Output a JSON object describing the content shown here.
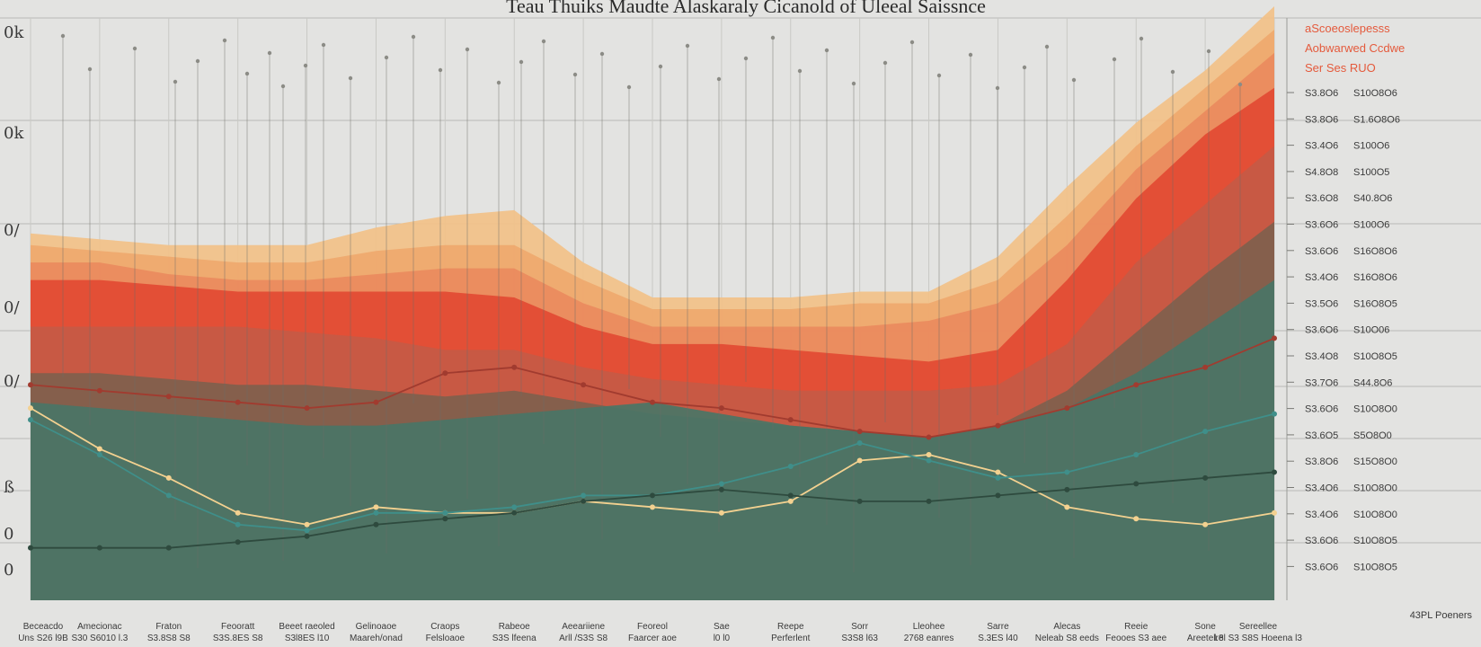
{
  "chart_data": {
    "type": "area",
    "title": "Teau Thuiks  Maudte Alaskaraly Cicanold  of  Uleeal Saissnce",
    "legend": {
      "placement": "top-right",
      "entries": [
        {
          "label": "aScoeoslepesss",
          "color": "#e24a33"
        },
        {
          "label": "Aobwarwed  Ccdwe",
          "color": "#e8694a"
        },
        {
          "label": "Ser Ses RUO",
          "color": "#ef8b5a"
        }
      ]
    },
    "left_ticks": [
      "0k",
      "0k",
      "0/",
      "0/",
      "0/",
      "ß",
      "0",
      "0"
    ],
    "right_ticks": [
      [
        "S3.8O6",
        "S10O8O6"
      ],
      [
        "S3.8O6",
        "S1.6O8O6"
      ],
      [
        "S3.4O6",
        "S100O6"
      ],
      [
        "S4.8O8",
        "S100O5"
      ],
      [
        "S3.6O8",
        "S40.8O6"
      ],
      [
        "S3.6O6",
        "S100O6"
      ],
      [
        "S3.6O6",
        "S16O8O6"
      ],
      [
        "S3.4O6",
        "S16O8O6"
      ],
      [
        "S3.5O6",
        "S16O8O5"
      ],
      [
        "S3.6O6",
        "S10O06"
      ],
      [
        "S3.4O8",
        "S10O8O5"
      ],
      [
        "S3.7O6",
        "S44.8O6"
      ],
      [
        "S3.6O6",
        "S10O8O0"
      ],
      [
        "S3.6O5",
        "S5O8O0"
      ],
      [
        "S3.8O6",
        "S15O8O0"
      ],
      [
        "S3.4O6",
        "S10O8O0"
      ],
      [
        "S3.4O6",
        "S10O8O0"
      ],
      [
        "S3.6O6",
        "S10O8O5"
      ],
      [
        "S3.6O6",
        "S10O8O5"
      ]
    ],
    "corner_label": "43PL Poeners",
    "categories": [
      {
        "line1": "Beceacdo",
        "line2": "Uns S26 l9B"
      },
      {
        "line1": "Amecionac",
        "line2": "S30 S6010 l.3"
      },
      {
        "line1": "Fraton",
        "line2": "S3.8S8 S8"
      },
      {
        "line1": "Feooratt",
        "line2": "S3S.8ES S8"
      },
      {
        "line1": "Beeet raeoled",
        "line2": "S3l8ES l10"
      },
      {
        "line1": "Gelinoaoe",
        "line2": "Maareh/onad"
      },
      {
        "line1": "Craops",
        "line2": "Felsloaoe"
      },
      {
        "line1": "Rabeoe",
        "line2": "S3S lfeena"
      },
      {
        "line1": "Aeeariiene",
        "line2": "Arll /S3S S8"
      },
      {
        "line1": "Feoreol",
        "line2": "Faarcer aoe"
      },
      {
        "line1": "Sae",
        "line2": "l0 l0"
      },
      {
        "line1": "Reepe",
        "line2": "Perferlent"
      },
      {
        "line1": "Sorr",
        "line2": "S3S8 l63"
      },
      {
        "line1": "Lleohee",
        "line2": "2768 eanres"
      },
      {
        "line1": "Sarre",
        "line2": "S.3ES l40"
      },
      {
        "line1": "Alecas",
        "line2": "Neleab S8 eeds"
      },
      {
        "line1": "Reeie",
        "line2": "Feooes S3 aee"
      },
      {
        "line1": "Sone",
        "line2": "Areetelre"
      },
      {
        "line1": "Sereellee",
        "line2": "l.8l S3 S8S Hoeena l3"
      }
    ],
    "x": [
      0,
      1,
      2,
      3,
      4,
      5,
      6,
      7,
      8,
      9,
      10,
      11,
      12,
      13,
      14,
      15,
      16,
      17,
      18
    ],
    "ylim": [
      0,
      100
    ],
    "grid": true,
    "areas": [
      {
        "color": "#f2c188",
        "values": [
          63,
          62,
          61,
          61,
          61,
          64,
          66,
          67,
          58,
          52,
          52,
          52,
          53,
          53,
          59,
          71,
          82,
          91,
          102
        ]
      },
      {
        "color": "#efa86e",
        "values": [
          61,
          60,
          59,
          58,
          58,
          60,
          61,
          61,
          55,
          50,
          50,
          50,
          51,
          51,
          55,
          66,
          78,
          88,
          98
        ]
      },
      {
        "color": "#ea8a5d",
        "values": [
          58,
          58,
          56,
          55,
          55,
          56,
          57,
          57,
          51,
          47,
          47,
          47,
          47,
          48,
          51,
          61,
          74,
          84,
          94
        ]
      },
      {
        "color": "#e24a33",
        "values": [
          55,
          55,
          54,
          53,
          53,
          53,
          53,
          52,
          47,
          44,
          44,
          43,
          42,
          41,
          43,
          55,
          69,
          80,
          88
        ]
      },
      {
        "color": "#c55a45",
        "values": [
          47,
          47,
          47,
          47,
          46,
          45,
          43,
          43,
          40,
          38,
          37,
          36,
          36,
          36,
          37,
          44,
          58,
          68,
          78
        ]
      },
      {
        "color": "#7f5f4d",
        "values": [
          39,
          39,
          38,
          37,
          37,
          36,
          35,
          36,
          34,
          32,
          31,
          30,
          29,
          28,
          30,
          36,
          46,
          56,
          65
        ]
      },
      {
        "color": "#4a7566",
        "values": [
          34,
          33,
          32,
          31,
          30,
          30,
          31,
          32,
          33,
          34,
          32,
          30,
          29,
          28,
          30,
          33,
          39,
          47,
          55
        ]
      }
    ],
    "lines": [
      {
        "color": "#f3d190",
        "values": [
          33,
          26,
          21,
          15,
          13,
          16,
          15,
          15,
          17,
          16,
          15,
          17,
          24,
          25,
          22,
          16,
          14,
          13,
          15
        ]
      },
      {
        "color": "#3f8f8a",
        "values": [
          31,
          25,
          18,
          13,
          12,
          15,
          15,
          16,
          18,
          18,
          20,
          23,
          27,
          24,
          21,
          22,
          25,
          29,
          32
        ]
      },
      {
        "color": "#a13b2f",
        "values": [
          37,
          36,
          35,
          34,
          33,
          34,
          39,
          40,
          37,
          34,
          33,
          31,
          29,
          28,
          30,
          33,
          37,
          40,
          45
        ]
      },
      {
        "color": "#2e4a3e",
        "values": [
          9,
          9,
          9,
          10,
          11,
          13,
          14,
          15,
          17,
          18,
          19,
          18,
          17,
          17,
          18,
          19,
          20,
          21,
          22
        ]
      }
    ]
  }
}
